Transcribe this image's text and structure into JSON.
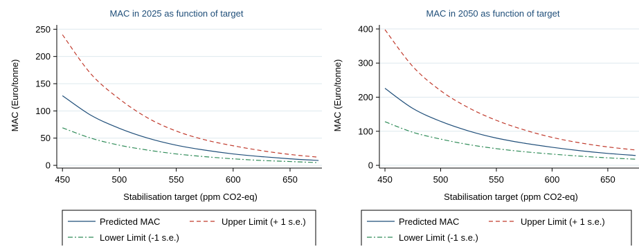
{
  "colors": {
    "title": "#1f4e79",
    "grid": "#dde8ee",
    "axis": "#000000",
    "predicted": "#1f4e79",
    "upper": "#c0392b",
    "lower": "#2e8b57"
  },
  "chart_data": [
    {
      "type": "line",
      "title": "MAC in 2025 as function of target",
      "xlabel": "Stabilisation target (ppm CO2-eq)",
      "ylabel": "MAC (Euro/tonne)",
      "xlim": [
        445,
        678
      ],
      "ylim": [
        -5,
        258
      ],
      "xticks": [
        450,
        500,
        550,
        600,
        650
      ],
      "yticks": [
        0,
        50,
        100,
        150,
        200,
        250
      ],
      "grid": true,
      "legend_position": "bottom",
      "x": [
        450,
        475,
        500,
        525,
        550,
        575,
        600,
        625,
        650,
        675
      ],
      "series": [
        {
          "name": "Predicted MAC",
          "style": "solid",
          "values": [
            128,
            92,
            68,
            50,
            37,
            28,
            21,
            16,
            12,
            9
          ]
        },
        {
          "name": "Upper Limit (+ 1 s.e.)",
          "style": "dashed",
          "values": [
            240,
            168,
            122,
            87,
            63,
            47,
            36,
            27,
            20,
            15
          ]
        },
        {
          "name": "Lower Limit (-1 s.e.)",
          "style": "dashdot",
          "values": [
            69,
            50,
            37,
            28,
            21,
            16,
            12,
            9,
            7,
            5
          ]
        }
      ]
    },
    {
      "type": "line",
      "title": "MAC in 2050 as function of target",
      "xlabel": "Stabilisation target (ppm CO2-eq)",
      "ylabel": "MAC (Euro/tonne)",
      "xlim": [
        445,
        678
      ],
      "ylim": [
        -8,
        412
      ],
      "xticks": [
        450,
        500,
        550,
        600,
        650
      ],
      "yticks": [
        0,
        100,
        200,
        300,
        400
      ],
      "grid": true,
      "legend_position": "bottom",
      "x": [
        450,
        475,
        500,
        525,
        550,
        575,
        600,
        625,
        650,
        675
      ],
      "series": [
        {
          "name": "Predicted MAC",
          "style": "solid",
          "values": [
            226,
            167,
            129,
            101,
            80,
            65,
            53,
            43,
            35,
            29
          ]
        },
        {
          "name": "Upper Limit (+ 1 s.e.)",
          "style": "dashed",
          "values": [
            398,
            290,
            219,
            169,
            132,
            104,
            82,
            66,
            54,
            45
          ]
        },
        {
          "name": "Lower Limit (-1 s.e.)",
          "style": "dashdot",
          "values": [
            128,
            97,
            77,
            61,
            49,
            40,
            33,
            27,
            22,
            18
          ]
        }
      ]
    }
  ]
}
